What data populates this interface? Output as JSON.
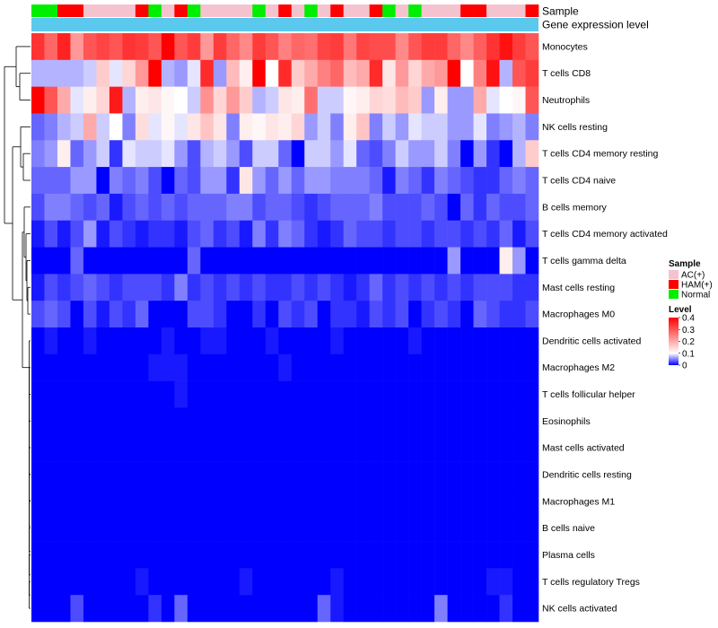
{
  "chart_data": {
    "type": "heatmap",
    "title": "",
    "color_scale": {
      "min": 0,
      "mid": 0.1,
      "max": 0.4,
      "low_color": "#0000ff",
      "mid_color": "#ffffff",
      "high_color": "#ff0000"
    },
    "annotations": {
      "sample_label": "Sample",
      "gene_label": "Gene expression level",
      "gene_color": "#5bc8ed",
      "sample_groups": [
        {
          "name": "AC(+)",
          "color": "#f5c3ce"
        },
        {
          "name": "HAM(+)",
          "color": "#ff0000"
        },
        {
          "name": "Normal",
          "color": "#00ee00"
        }
      ],
      "sample_assignment": [
        "Normal",
        "Normal",
        "HAM(+)",
        "HAM(+)",
        "AC(+)",
        "AC(+)",
        "AC(+)",
        "AC(+)",
        "HAM(+)",
        "Normal",
        "AC(+)",
        "HAM(+)",
        "Normal",
        "AC(+)",
        "AC(+)",
        "AC(+)",
        "AC(+)",
        "Normal",
        "AC(+)",
        "HAM(+)",
        "AC(+)",
        "Normal",
        "AC(+)",
        "HAM(+)",
        "AC(+)",
        "AC(+)",
        "HAM(+)",
        "Normal",
        "AC(+)",
        "Normal",
        "AC(+)",
        "AC(+)",
        "AC(+)",
        "HAM(+)",
        "HAM(+)",
        "AC(+)",
        "AC(+)",
        "AC(+)",
        "HAM(+)"
      ]
    },
    "legend": {
      "sample_title": "Sample",
      "level_title": "Level",
      "level_ticks": [
        "0.4",
        "0.3",
        "0.2",
        "0.1",
        "0"
      ],
      "level_tick_values": [
        0.4,
        0.3,
        0.2,
        0.1,
        0
      ]
    },
    "rows": [
      "Monocytes",
      "T cells CD8",
      "Neutrophils",
      "NK cells resting",
      "T cells CD4 memory resting",
      "T cells CD4 naive",
      "B cells memory",
      "T cells CD4 memory activated",
      "T cells gamma delta",
      "Mast cells resting",
      "Macrophages M0",
      "Dendritic cells activated",
      "Macrophages M2",
      "T cells follicular helper",
      "Eosinophils",
      "Mast cells activated",
      "Dendritic cells resting",
      "Macrophages M1",
      "B cells naive",
      "Plasma cells",
      "T cells regulatory  Tregs",
      "NK cells activated"
    ],
    "values": [
      [
        0.34,
        0.28,
        0.36,
        0.22,
        0.3,
        0.32,
        0.3,
        0.34,
        0.33,
        0.3,
        0.4,
        0.3,
        0.33,
        0.22,
        0.33,
        0.28,
        0.24,
        0.33,
        0.3,
        0.25,
        0.28,
        0.27,
        0.32,
        0.33,
        0.26,
        0.32,
        0.31,
        0.31,
        0.24,
        0.3,
        0.33,
        0.33,
        0.28,
        0.24,
        0.29,
        0.34,
        0.38,
        0.33,
        0.3
      ],
      [
        0.07,
        0.07,
        0.07,
        0.07,
        0.08,
        0.16,
        0.09,
        0.15,
        0.22,
        0.4,
        0.07,
        0.06,
        0.09,
        0.35,
        0.06,
        0.18,
        0.12,
        0.4,
        0.1,
        0.35,
        0.16,
        0.2,
        0.25,
        0.28,
        0.18,
        0.2,
        0.35,
        0.13,
        0.22,
        0.15,
        0.2,
        0.22,
        0.4,
        0.1,
        0.25,
        0.38,
        0.07,
        0.3,
        0.33
      ],
      [
        0.4,
        0.3,
        0.2,
        0.09,
        0.12,
        0.15,
        0.37,
        0.07,
        0.12,
        0.13,
        0.11,
        0.1,
        0.08,
        0.23,
        0.15,
        0.22,
        0.16,
        0.07,
        0.08,
        0.13,
        0.12,
        0.27,
        0.08,
        0.08,
        0.11,
        0.12,
        0.15,
        0.14,
        0.18,
        0.16,
        0.06,
        0.12,
        0.06,
        0.06,
        0.2,
        0.09,
        0.1,
        0.11,
        0.3
      ],
      [
        0.04,
        0.05,
        0.07,
        0.08,
        0.2,
        0.08,
        0.1,
        0.05,
        0.14,
        0.09,
        0.11,
        0.09,
        0.13,
        0.17,
        0.13,
        0.05,
        0.12,
        0.11,
        0.13,
        0.12,
        0.15,
        0.06,
        0.08,
        0.05,
        0.12,
        0.17,
        0.05,
        0.08,
        0.06,
        0.09,
        0.08,
        0.08,
        0.06,
        0.06,
        0.09,
        0.05,
        0.06,
        0.07,
        0.05
      ],
      [
        0.05,
        0.06,
        0.12,
        0.04,
        0.06,
        0.08,
        0.02,
        0.09,
        0.08,
        0.08,
        0.09,
        0.06,
        0.03,
        0.07,
        0.08,
        0.06,
        0.03,
        0.08,
        0.08,
        0.04,
        0.0,
        0.08,
        0.08,
        0.06,
        0.09,
        0.04,
        0.03,
        0.05,
        0.08,
        0.06,
        0.06,
        0.08,
        0.05,
        0.0,
        0.06,
        0.02,
        0.0,
        0.07,
        0.16
      ],
      [
        0.04,
        0.04,
        0.04,
        0.06,
        0.06,
        0.0,
        0.05,
        0.04,
        0.05,
        0.03,
        0.0,
        0.04,
        0.03,
        0.06,
        0.06,
        0.02,
        0.13,
        0.06,
        0.04,
        0.06,
        0.04,
        0.06,
        0.06,
        0.05,
        0.05,
        0.05,
        0.04,
        0.01,
        0.05,
        0.04,
        0.02,
        0.05,
        0.04,
        0.03,
        0.02,
        0.02,
        0.04,
        0.05,
        0.04
      ],
      [
        0.03,
        0.05,
        0.05,
        0.04,
        0.03,
        0.04,
        0.01,
        0.03,
        0.04,
        0.03,
        0.04,
        0.03,
        0.04,
        0.04,
        0.04,
        0.05,
        0.05,
        0.03,
        0.04,
        0.04,
        0.03,
        0.02,
        0.03,
        0.04,
        0.04,
        0.04,
        0.05,
        0.03,
        0.03,
        0.03,
        0.04,
        0.03,
        0.0,
        0.04,
        0.02,
        0.04,
        0.03,
        0.03,
        0.04
      ],
      [
        0.01,
        0.03,
        0.01,
        0.03,
        0.06,
        0.01,
        0.03,
        0.02,
        0.01,
        0.02,
        0.02,
        0.01,
        0.03,
        0.04,
        0.02,
        0.03,
        0.01,
        0.05,
        0.02,
        0.05,
        0.04,
        0.02,
        0.01,
        0.02,
        0.04,
        0.03,
        0.03,
        0.02,
        0.03,
        0.03,
        0.02,
        0.03,
        0.03,
        0.02,
        0.03,
        0.02,
        0.04,
        0.01,
        0.03
      ],
      [
        0.0,
        0.0,
        0.0,
        0.04,
        0.0,
        0.0,
        0.0,
        0.0,
        0.0,
        0.0,
        0.0,
        0.0,
        0.04,
        0.0,
        0.0,
        0.0,
        0.0,
        0.0,
        0.0,
        0.0,
        0.0,
        0.0,
        0.0,
        0.0,
        0.0,
        0.0,
        0.0,
        0.0,
        0.0,
        0.0,
        0.0,
        0.0,
        0.06,
        0.0,
        0.0,
        0.0,
        0.12,
        0.06,
        0.0
      ],
      [
        0.01,
        0.03,
        0.02,
        0.03,
        0.04,
        0.03,
        0.02,
        0.03,
        0.03,
        0.03,
        0.02,
        0.05,
        0.02,
        0.03,
        0.02,
        0.03,
        0.02,
        0.03,
        0.02,
        0.02,
        0.03,
        0.02,
        0.03,
        0.02,
        0.01,
        0.02,
        0.04,
        0.02,
        0.03,
        0.02,
        0.03,
        0.02,
        0.03,
        0.02,
        0.03,
        0.03,
        0.03,
        0.02,
        0.02
      ],
      [
        0.03,
        0.04,
        0.03,
        0.0,
        0.03,
        0.01,
        0.03,
        0.02,
        0.04,
        0.0,
        0.0,
        0.0,
        0.03,
        0.03,
        0.02,
        0.0,
        0.0,
        0.02,
        0.0,
        0.03,
        0.02,
        0.03,
        0.0,
        0.02,
        0.02,
        0.01,
        0.03,
        0.02,
        0.03,
        0.0,
        0.02,
        0.03,
        0.02,
        0.0,
        0.04,
        0.03,
        0.02,
        0.02,
        0.03
      ],
      [
        0.0,
        0.01,
        0.0,
        0.0,
        0.01,
        0.0,
        0.0,
        0.0,
        0.0,
        0.0,
        0.01,
        0.0,
        0.0,
        0.01,
        0.01,
        0.0,
        0.0,
        0.0,
        0.01,
        0.0,
        0.0,
        0.0,
        0.0,
        0.01,
        0.0,
        0.0,
        0.0,
        0.0,
        0.0,
        0.01,
        0.0,
        0.0,
        0.0,
        0.0,
        0.0,
        0.0,
        0.0,
        0.0,
        0.0
      ],
      [
        0,
        0,
        0,
        0,
        0,
        0,
        0,
        0,
        0,
        0.01,
        0.01,
        0.01,
        0,
        0,
        0,
        0,
        0,
        0,
        0,
        0.01,
        0,
        0,
        0,
        0,
        0,
        0,
        0,
        0,
        0,
        0,
        0,
        0,
        0,
        0,
        0,
        0,
        0,
        0,
        0
      ],
      [
        0,
        0,
        0,
        0,
        0,
        0,
        0,
        0,
        0,
        0,
        0,
        0.01,
        0,
        0,
        0,
        0,
        0,
        0,
        0,
        0,
        0,
        0,
        0,
        0,
        0,
        0,
        0,
        0,
        0,
        0,
        0,
        0,
        0,
        0,
        0,
        0,
        0,
        0,
        0
      ],
      [
        0,
        0,
        0,
        0,
        0,
        0,
        0,
        0,
        0,
        0,
        0,
        0,
        0,
        0,
        0,
        0,
        0,
        0,
        0,
        0,
        0,
        0,
        0,
        0,
        0,
        0,
        0,
        0,
        0,
        0,
        0,
        0,
        0,
        0,
        0,
        0,
        0,
        0,
        0
      ],
      [
        0,
        0,
        0,
        0,
        0,
        0,
        0,
        0,
        0,
        0,
        0,
        0,
        0,
        0,
        0,
        0,
        0,
        0,
        0,
        0,
        0,
        0,
        0,
        0,
        0,
        0,
        0,
        0,
        0,
        0,
        0,
        0,
        0,
        0,
        0,
        0,
        0,
        0,
        0
      ],
      [
        0,
        0,
        0,
        0,
        0,
        0,
        0,
        0,
        0,
        0,
        0,
        0,
        0,
        0,
        0,
        0,
        0,
        0,
        0,
        0,
        0,
        0,
        0,
        0,
        0,
        0,
        0,
        0,
        0,
        0,
        0,
        0,
        0,
        0,
        0,
        0,
        0,
        0,
        0
      ],
      [
        0,
        0,
        0,
        0,
        0,
        0,
        0,
        0,
        0,
        0,
        0,
        0,
        0,
        0,
        0,
        0,
        0,
        0,
        0,
        0,
        0,
        0,
        0,
        0,
        0,
        0,
        0,
        0,
        0,
        0,
        0,
        0,
        0,
        0,
        0,
        0,
        0,
        0,
        0
      ],
      [
        0,
        0,
        0,
        0,
        0,
        0,
        0,
        0,
        0,
        0,
        0,
        0,
        0,
        0,
        0,
        0,
        0,
        0,
        0,
        0,
        0,
        0,
        0,
        0,
        0,
        0,
        0,
        0,
        0,
        0,
        0,
        0,
        0,
        0,
        0,
        0,
        0,
        0,
        0
      ],
      [
        0,
        0,
        0,
        0,
        0,
        0,
        0,
        0,
        0,
        0,
        0,
        0,
        0,
        0,
        0,
        0,
        0,
        0,
        0,
        0,
        0,
        0,
        0,
        0,
        0,
        0,
        0,
        0,
        0,
        0,
        0,
        0,
        0,
        0,
        0,
        0,
        0,
        0,
        0
      ],
      [
        0,
        0,
        0,
        0,
        0,
        0,
        0,
        0,
        0.01,
        0,
        0,
        0,
        0,
        0,
        0,
        0,
        0.01,
        0,
        0,
        0,
        0,
        0,
        0,
        0.01,
        0,
        0,
        0,
        0,
        0,
        0,
        0,
        0,
        0,
        0,
        0,
        0.01,
        0.01,
        0,
        0
      ],
      [
        0,
        0,
        0,
        0.03,
        0,
        0,
        0,
        0,
        0,
        0.02,
        0,
        0.04,
        0,
        0,
        0,
        0,
        0,
        0,
        0,
        0,
        0,
        0,
        0.04,
        0.01,
        0,
        0,
        0,
        0,
        0,
        0,
        0,
        0.05,
        0,
        0,
        0,
        0,
        0.02,
        0,
        0
      ]
    ]
  }
}
